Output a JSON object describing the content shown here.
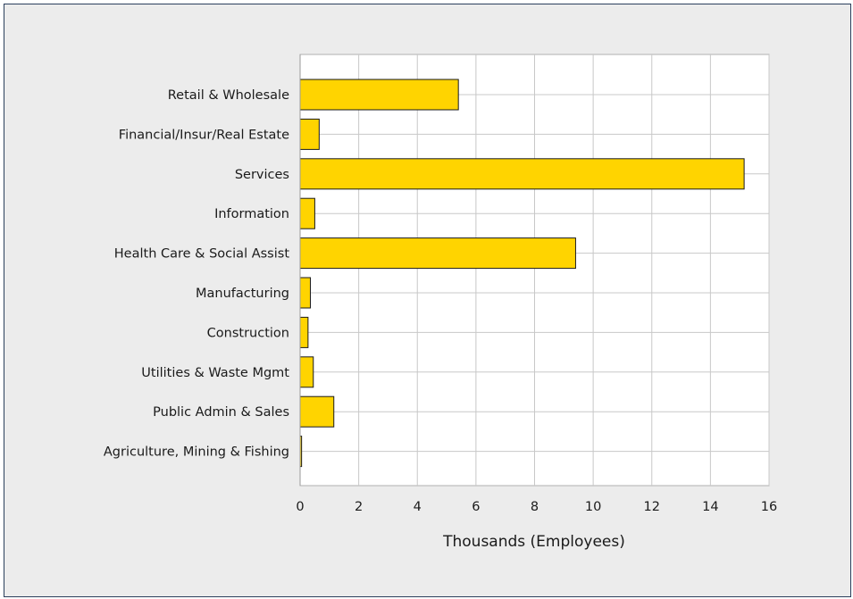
{
  "chart_data": {
    "type": "bar",
    "orientation": "horizontal",
    "categories": [
      "Retail & Wholesale",
      "Financial/Insur/Real Estate",
      "Services",
      "Information",
      "Health Care & Social Assist",
      "Manufacturing",
      "Construction",
      "Utilities & Waste Mgmt",
      "Public Admin & Sales",
      "Agriculture, Mining & Fishing"
    ],
    "values": [
      5.4,
      0.65,
      15.15,
      0.5,
      9.4,
      0.35,
      0.27,
      0.45,
      1.15,
      0.05
    ],
    "xlabel": "Thousands (Employees)",
    "ylabel": "",
    "xlim": [
      0,
      16
    ],
    "xticks": [
      "0",
      "2",
      "4",
      "6",
      "8",
      "10",
      "12",
      "14",
      "16"
    ],
    "grid": true,
    "colors": {
      "bar_fill": "#ffd400",
      "bar_stroke": "#1a1a1a",
      "plot_background": "#ffffff",
      "panel_background": "#ececec",
      "grid": "#c8c8c8"
    }
  }
}
